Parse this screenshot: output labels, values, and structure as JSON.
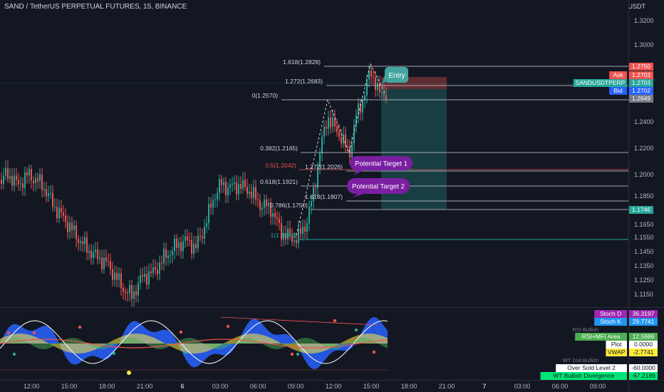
{
  "header": {
    "title": "SAND / TetherUS PERPETUAL FUTURES, 15, BINANCE",
    "currency": "USDT"
  },
  "colors": {
    "bg": "#131722",
    "up": "#26a69a",
    "down": "#ef5350",
    "grid": "#1e222d",
    "fib": "#b2b5be",
    "purple": "#7b1fa2",
    "teal": "#26a69a"
  },
  "price_axis": {
    "ticks": [
      "1.3000",
      "1.2750",
      "1.2400",
      "1.2200",
      "1.2000",
      "1.1850",
      "1.1650",
      "1.1550",
      "1.1450",
      "1.1350",
      "1.1250",
      "1.1150"
    ],
    "upper_ticks": [
      "1.3200",
      "1.3000"
    ]
  },
  "price_labels": [
    {
      "text": "1.2750",
      "bg": "#ef5350"
    },
    {
      "text": "Ask",
      "value": "1.2703",
      "bg": "#ef5350"
    },
    {
      "text": "SANDUSDTPERP",
      "value": "1.2703",
      "bg": "#26a69a"
    },
    {
      "text": "Bid",
      "value": "1.2702",
      "bg": "#2962ff"
    },
    {
      "text": "1.2649",
      "bg": "#787b86"
    },
    {
      "text": "1.1746",
      "bg": "#26a69a"
    }
  ],
  "time_axis": [
    "12:00",
    "15:00",
    "18:00",
    "21:00",
    "6",
    "03:00",
    "06:00",
    "09:00",
    "12:00",
    "15:00",
    "18:00",
    "21:00",
    "7",
    "03:00",
    "06:00",
    "09:00"
  ],
  "fib_levels": [
    {
      "label": "1.618(1.2828)"
    },
    {
      "label": "1.272(1.2683)"
    },
    {
      "label": "0(1.2570)"
    },
    {
      "label": "0.382(1.2165)"
    },
    {
      "label": "0.5(1.2042)"
    },
    {
      "label": "1.272(1.2026)"
    },
    {
      "label": "0.618(1.1921)"
    },
    {
      "label": "1.618(1.1807)"
    },
    {
      "label": "0.786(1.1750)"
    },
    {
      "label": "1(1.1546)"
    }
  ],
  "callouts": {
    "entry": "Entry",
    "target1": "Potential Target 1",
    "target2": "Potential Target 2"
  },
  "indicator_labels": [
    {
      "name": "Stoch D",
      "value": "36.3197",
      "bg": "#9c27b0"
    },
    {
      "name": "Stoch K",
      "value": "29.7741",
      "bg": "#2196f3"
    },
    {
      "name": "RSI Bullish",
      "value": "",
      "bg": "none"
    },
    {
      "name": "RSI+MFI Area",
      "value": "12.5986",
      "bg": "#4caf50"
    },
    {
      "name": "Plot",
      "value": "0.0000",
      "bg": "#ffffff"
    },
    {
      "name": "VWAP",
      "value": "-2.7741",
      "bg": "#ffeb3b"
    },
    {
      "name": "WT 2nd Bullish",
      "value": "",
      "bg": "none"
    },
    {
      "name": "Over Sold Level 2",
      "value": "-60.0000",
      "bg": "#ffffff"
    },
    {
      "name": "WT Bullish Divergence",
      "value": "-67.2189",
      "bg": "#00e676"
    }
  ]
}
